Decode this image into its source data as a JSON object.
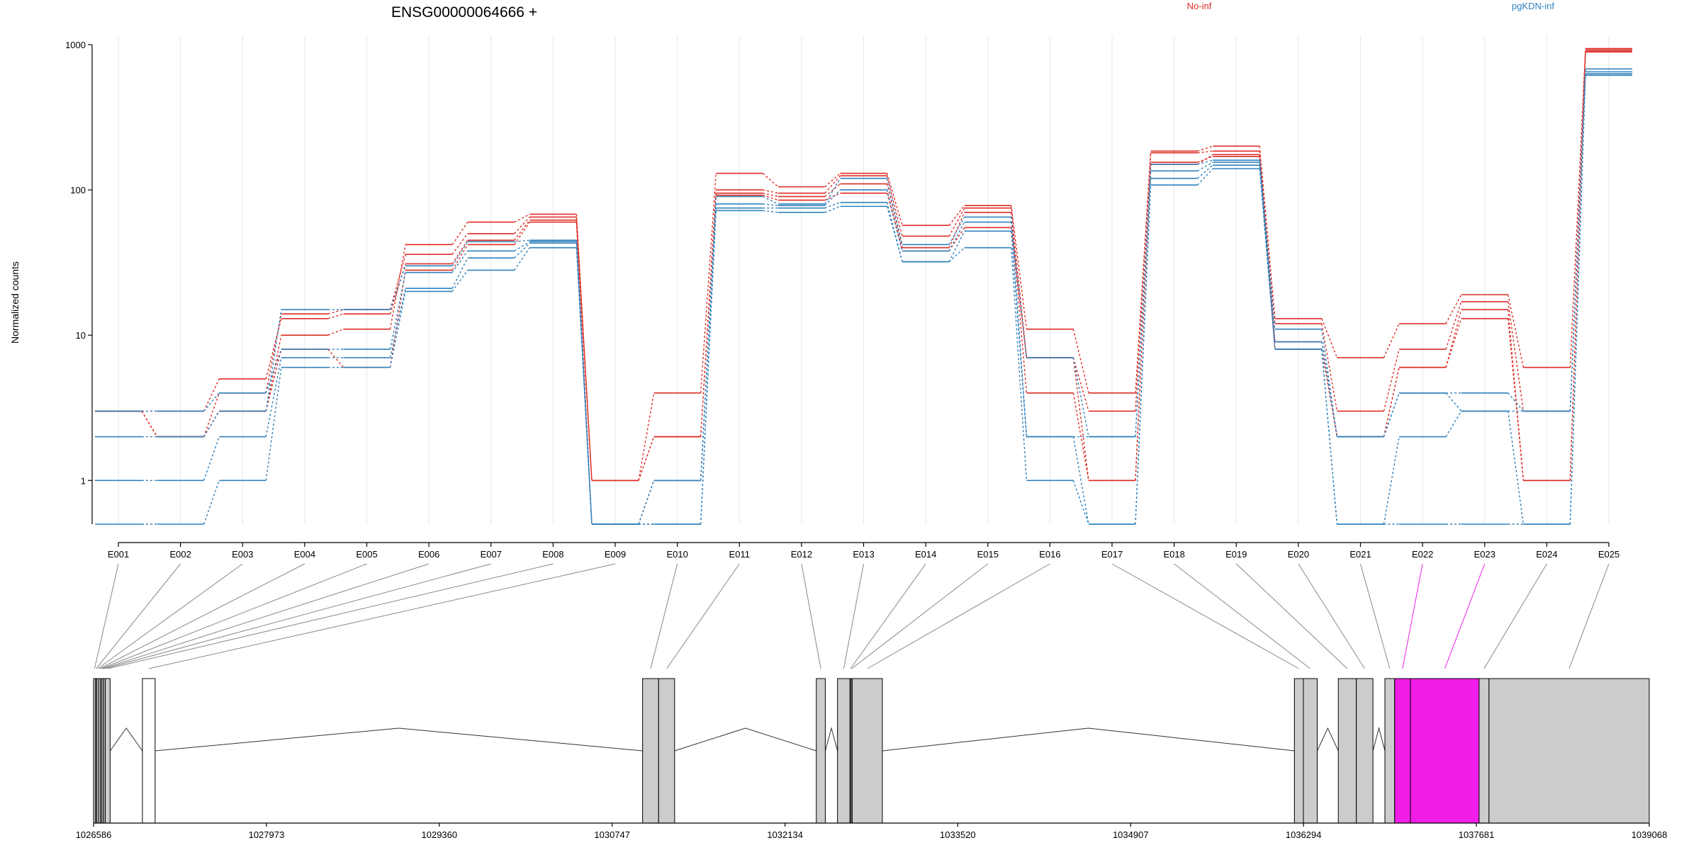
{
  "chart_data": {
    "type": "line",
    "title": "ENSG00000064666 +",
    "ylabel": "Normalized counts",
    "yscale": "log",
    "yticks": [
      1,
      10,
      100,
      1000
    ],
    "ylim": [
      0.5,
      1000
    ],
    "categories": [
      "E001",
      "E002",
      "E003",
      "E004",
      "E005",
      "E006",
      "E007",
      "E008",
      "E009",
      "E010",
      "E011",
      "E012",
      "E013",
      "E014",
      "E015",
      "E016",
      "E017",
      "E018",
      "E019",
      "E020",
      "E021",
      "E022",
      "E023",
      "E024",
      "E025"
    ],
    "groups": [
      {
        "name": "No-inf",
        "color": "#de2d26"
      },
      {
        "name": "pgKDN-inf",
        "color": "#3182bd"
      }
    ],
    "series": [
      {
        "group": "No-inf",
        "values": [
          3,
          2,
          3,
          10,
          11,
          42,
          60,
          68,
          1,
          4,
          130,
          105,
          130,
          57,
          78,
          11,
          4,
          185,
          200,
          13,
          7,
          12,
          19,
          6,
          940
        ]
      },
      {
        "group": "No-inf",
        "values": [
          3,
          2,
          4,
          14,
          15,
          36,
          50,
          65,
          1,
          2,
          100,
          95,
          125,
          48,
          75,
          7,
          3,
          180,
          185,
          12,
          3,
          8,
          17,
          3,
          920
        ]
      },
      {
        "group": "No-inf",
        "values": [
          3,
          3,
          5,
          13,
          14,
          31,
          45,
          62,
          1,
          2,
          95,
          90,
          110,
          40,
          70,
          4,
          1,
          155,
          170,
          9,
          2,
          6,
          15,
          1,
          900
        ]
      },
      {
        "group": "No-inf",
        "values": [
          3,
          2,
          3,
          8,
          6,
          28,
          42,
          60,
          0.5,
          1,
          92,
          85,
          95,
          38,
          55,
          7,
          1,
          150,
          175,
          8,
          2,
          6,
          13,
          1,
          890
        ]
      },
      {
        "group": "pgKDN-inf",
        "values": [
          2,
          2,
          3,
          15,
          15,
          30,
          44,
          45,
          0.5,
          1,
          90,
          80,
          120,
          42,
          65,
          2,
          2,
          150,
          160,
          11,
          2,
          4,
          4,
          3,
          680
        ]
      },
      {
        "group": "pgKDN-inf",
        "values": [
          3,
          3,
          4,
          8,
          8,
          27,
          38,
          44,
          0.5,
          0.5,
          80,
          78,
          100,
          38,
          60,
          7,
          2,
          135,
          155,
          9,
          2,
          4,
          3,
          3,
          650
        ]
      },
      {
        "group": "pgKDN-inf",
        "values": [
          1,
          1,
          2,
          7,
          7,
          21,
          34,
          43,
          0.5,
          1,
          75,
          75,
          82,
          32,
          52,
          2,
          0.5,
          120,
          148,
          8,
          0.5,
          2,
          3,
          0.5,
          630
        ]
      },
      {
        "group": "pgKDN-inf",
        "values": [
          0.5,
          0.5,
          1,
          6,
          6,
          20,
          28,
          40,
          0.5,
          0.5,
          72,
          70,
          77,
          32,
          40,
          1,
          0.5,
          108,
          140,
          8,
          0.5,
          0.5,
          0.5,
          0.5,
          615
        ]
      }
    ],
    "gene_model": {
      "xticks": [
        1026586,
        1027973,
        1029360,
        1030747,
        1032134,
        1033520,
        1034907,
        1036294,
        1037681,
        1039068
      ],
      "xlim": [
        1026586,
        1039068
      ],
      "highlight_color": "#f01ee8",
      "exon_color": "#cccccc",
      "exons": [
        {
          "id": "E001",
          "start": 1026586,
          "end": 1026602,
          "fill": "#cccccc"
        },
        {
          "id": "E002",
          "start": 1026602,
          "end": 1026611,
          "fill": "#cccccc"
        },
        {
          "id": "E003",
          "start": 1026611,
          "end": 1026626,
          "fill": "#cccccc"
        },
        {
          "id": "E004",
          "start": 1026626,
          "end": 1026641,
          "fill": "#cccccc"
        },
        {
          "id": "E005",
          "start": 1026641,
          "end": 1026653,
          "fill": "#cccccc"
        },
        {
          "id": "E006",
          "start": 1026653,
          "end": 1026667,
          "fill": "#cccccc"
        },
        {
          "id": "E007",
          "start": 1026667,
          "end": 1026680,
          "fill": "#cccccc"
        },
        {
          "id": "E008",
          "start": 1026680,
          "end": 1026719,
          "fill": "#cccccc"
        },
        {
          "id": "E009",
          "start": 1026978,
          "end": 1027080,
          "fill": "#ffffff"
        },
        {
          "id": "E010",
          "start": 1030991,
          "end": 1031120,
          "fill": "#cccccc"
        },
        {
          "id": "E011",
          "start": 1031120,
          "end": 1031248,
          "fill": "#cccccc"
        },
        {
          "id": "E012",
          "start": 1032385,
          "end": 1032457,
          "fill": "#cccccc"
        },
        {
          "id": "E013",
          "start": 1032555,
          "end": 1032655,
          "fill": "#cccccc"
        },
        {
          "id": "E014",
          "start": 1032655,
          "end": 1032664,
          "fill": "#cccccc"
        },
        {
          "id": "E015",
          "start": 1032664,
          "end": 1032673,
          "fill": "#cccccc"
        },
        {
          "id": "E016",
          "start": 1032673,
          "end": 1032915,
          "fill": "#cccccc"
        },
        {
          "id": "E017",
          "start": 1036221,
          "end": 1036293,
          "fill": "#cccccc"
        },
        {
          "id": "E018",
          "start": 1036293,
          "end": 1036404,
          "fill": "#cccccc"
        },
        {
          "id": "E019",
          "start": 1036573,
          "end": 1036718,
          "fill": "#cccccc"
        },
        {
          "id": "E020",
          "start": 1036718,
          "end": 1036851,
          "fill": "#cccccc"
        },
        {
          "id": "E021",
          "start": 1036947,
          "end": 1037025,
          "fill": "#cccccc"
        },
        {
          "id": "E022",
          "start": 1037025,
          "end": 1037152,
          "fill": "#f01ee8"
        },
        {
          "id": "E023",
          "start": 1037152,
          "end": 1037703,
          "fill": "#f01ee8"
        },
        {
          "id": "E024",
          "start": 1037703,
          "end": 1037782,
          "fill": "#cccccc"
        },
        {
          "id": "E025",
          "start": 1037782,
          "end": 1039068,
          "fill": "#cccccc"
        }
      ],
      "introns": [
        [
          1026719,
          1026978
        ],
        [
          1027080,
          1030991
        ],
        [
          1031248,
          1032385
        ],
        [
          1032457,
          1032555
        ],
        [
          1032915,
          1036221
        ],
        [
          1036404,
          1036573
        ],
        [
          1036851,
          1036947
        ]
      ]
    }
  }
}
